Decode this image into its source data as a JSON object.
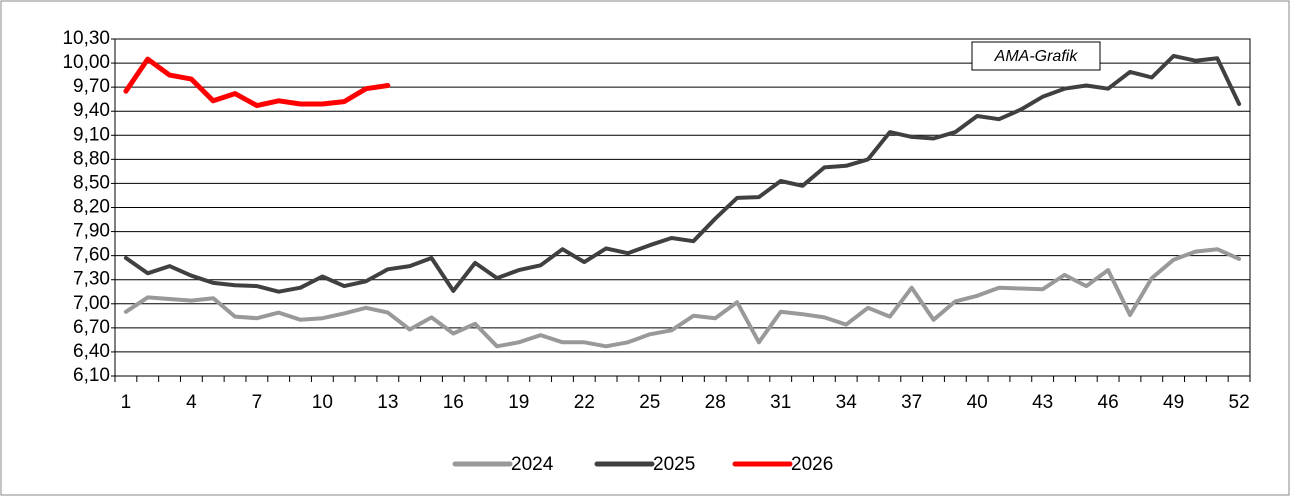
{
  "chart_data": {
    "type": "line",
    "annotation": "AMA-Grafik",
    "categories": [
      "1",
      null,
      null,
      "4",
      null,
      null,
      "7",
      null,
      null,
      "10",
      null,
      null,
      "13",
      null,
      null,
      "16",
      null,
      null,
      "19",
      null,
      null,
      "22",
      null,
      null,
      "25",
      null,
      null,
      "28",
      null,
      null,
      "31",
      null,
      null,
      "34",
      null,
      null,
      "37",
      null,
      null,
      "40",
      null,
      null,
      "43",
      null,
      null,
      "46",
      null,
      null,
      "49",
      null,
      null,
      "52"
    ],
    "ylim": [
      6.1,
      10.3
    ],
    "yticks": [
      {
        "value": 6.1,
        "label": "6,10"
      },
      {
        "value": 6.4,
        "label": "6,40"
      },
      {
        "value": 6.7,
        "label": "6,70"
      },
      {
        "value": 7.0,
        "label": "7,00"
      },
      {
        "value": 7.3,
        "label": "7,30"
      },
      {
        "value": 7.6,
        "label": "7,60"
      },
      {
        "value": 7.9,
        "label": "7,90"
      },
      {
        "value": 8.2,
        "label": "8,20"
      },
      {
        "value": 8.5,
        "label": "8,50"
      },
      {
        "value": 8.8,
        "label": "8,80"
      },
      {
        "value": 9.1,
        "label": "9,10"
      },
      {
        "value": 9.4,
        "label": "9,40"
      },
      {
        "value": 9.7,
        "label": "9,70"
      },
      {
        "value": 10.0,
        "label": "10,00"
      },
      {
        "value": 10.3,
        "label": "10,30"
      }
    ],
    "grid": true,
    "legend": "bottom",
    "series": [
      {
        "name": "2024",
        "color": "#999999",
        "values": [
          6.9,
          7.08,
          7.06,
          7.04,
          7.07,
          6.84,
          6.82,
          6.89,
          6.8,
          6.82,
          6.88,
          6.95,
          6.89,
          6.68,
          6.83,
          6.63,
          6.75,
          6.47,
          6.52,
          6.61,
          6.52,
          6.52,
          6.47,
          6.52,
          6.62,
          6.67,
          6.85,
          6.82,
          7.02,
          6.52,
          6.9,
          6.87,
          6.83,
          6.74,
          6.95,
          6.84,
          7.2,
          6.8,
          7.03,
          7.1,
          7.2,
          7.19,
          7.18,
          7.36,
          7.22,
          7.42,
          6.86,
          7.32,
          7.55,
          7.65,
          7.68,
          7.56
        ]
      },
      {
        "name": "2025",
        "color": "#404040",
        "values": [
          7.57,
          7.38,
          7.47,
          7.35,
          7.26,
          7.23,
          7.22,
          7.15,
          7.2,
          7.34,
          7.22,
          7.28,
          7.43,
          7.47,
          7.57,
          7.16,
          7.51,
          7.32,
          7.42,
          7.48,
          7.68,
          7.52,
          7.69,
          7.63,
          7.73,
          7.82,
          7.78,
          8.06,
          8.32,
          8.33,
          8.53,
          8.47,
          8.7,
          8.72,
          8.8,
          9.14,
          9.08,
          9.06,
          9.14,
          9.34,
          9.3,
          9.42,
          9.58,
          9.68,
          9.72,
          9.68,
          9.89,
          9.82,
          10.09,
          10.03,
          10.06,
          9.49
        ]
      },
      {
        "name": "2026",
        "color": "#ff0000",
        "values": [
          9.65,
          10.05,
          9.85,
          9.8,
          9.53,
          9.62,
          9.47,
          9.53,
          9.49,
          9.49,
          9.52,
          9.68,
          9.72,
          null,
          null,
          null,
          null,
          null,
          null,
          null,
          null,
          null,
          null,
          null,
          null,
          null,
          null,
          null,
          null,
          null,
          null,
          null,
          null,
          null,
          null,
          null,
          null,
          null,
          null,
          null,
          null,
          null,
          null,
          null,
          null,
          null,
          null,
          null,
          null,
          null,
          null,
          null
        ]
      }
    ]
  }
}
